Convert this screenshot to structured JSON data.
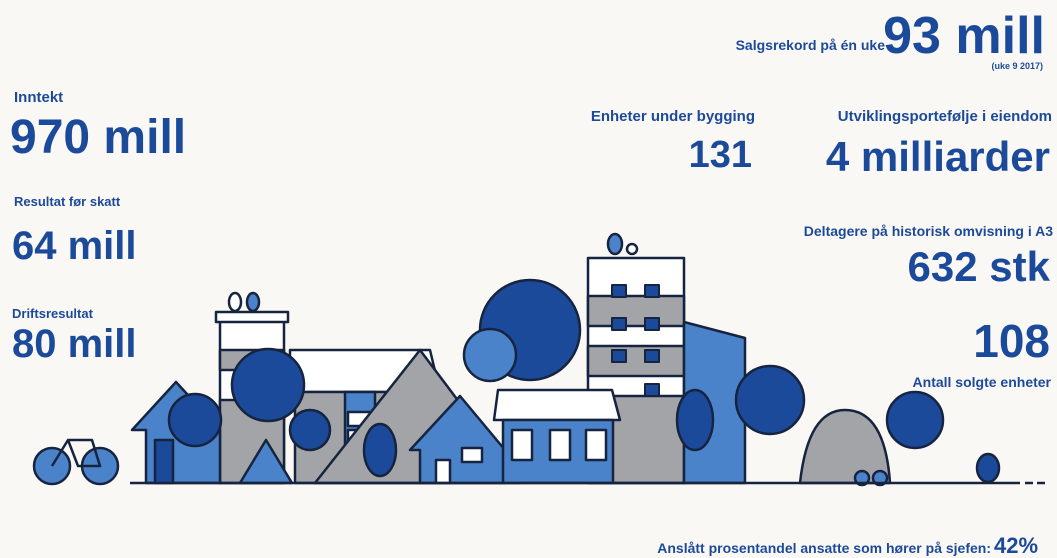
{
  "record": {
    "label": "Salgsrekord på én uke",
    "value": "93 mill",
    "note": "(uke 9 2017)"
  },
  "stats": [
    {
      "label": "Inntekt",
      "value": "970 mill"
    },
    {
      "label": "Resultat før skatt",
      "value": "64 mill"
    },
    {
      "label": "Driftsresultat",
      "value": "80 mill"
    },
    {
      "label": "Enheter under bygging",
      "value": "131"
    },
    {
      "label": "Utviklingsportefølje i eiendom",
      "value": "4 milliarder"
    },
    {
      "label": "Deltagere på historisk omvisning i A3",
      "value": "632 stk"
    },
    {
      "label": "Antall solgte enheter",
      "value": "108"
    },
    {
      "label": "Anslått prosentandel ansatte som hører på sjefen:",
      "value": "42%"
    }
  ]
}
